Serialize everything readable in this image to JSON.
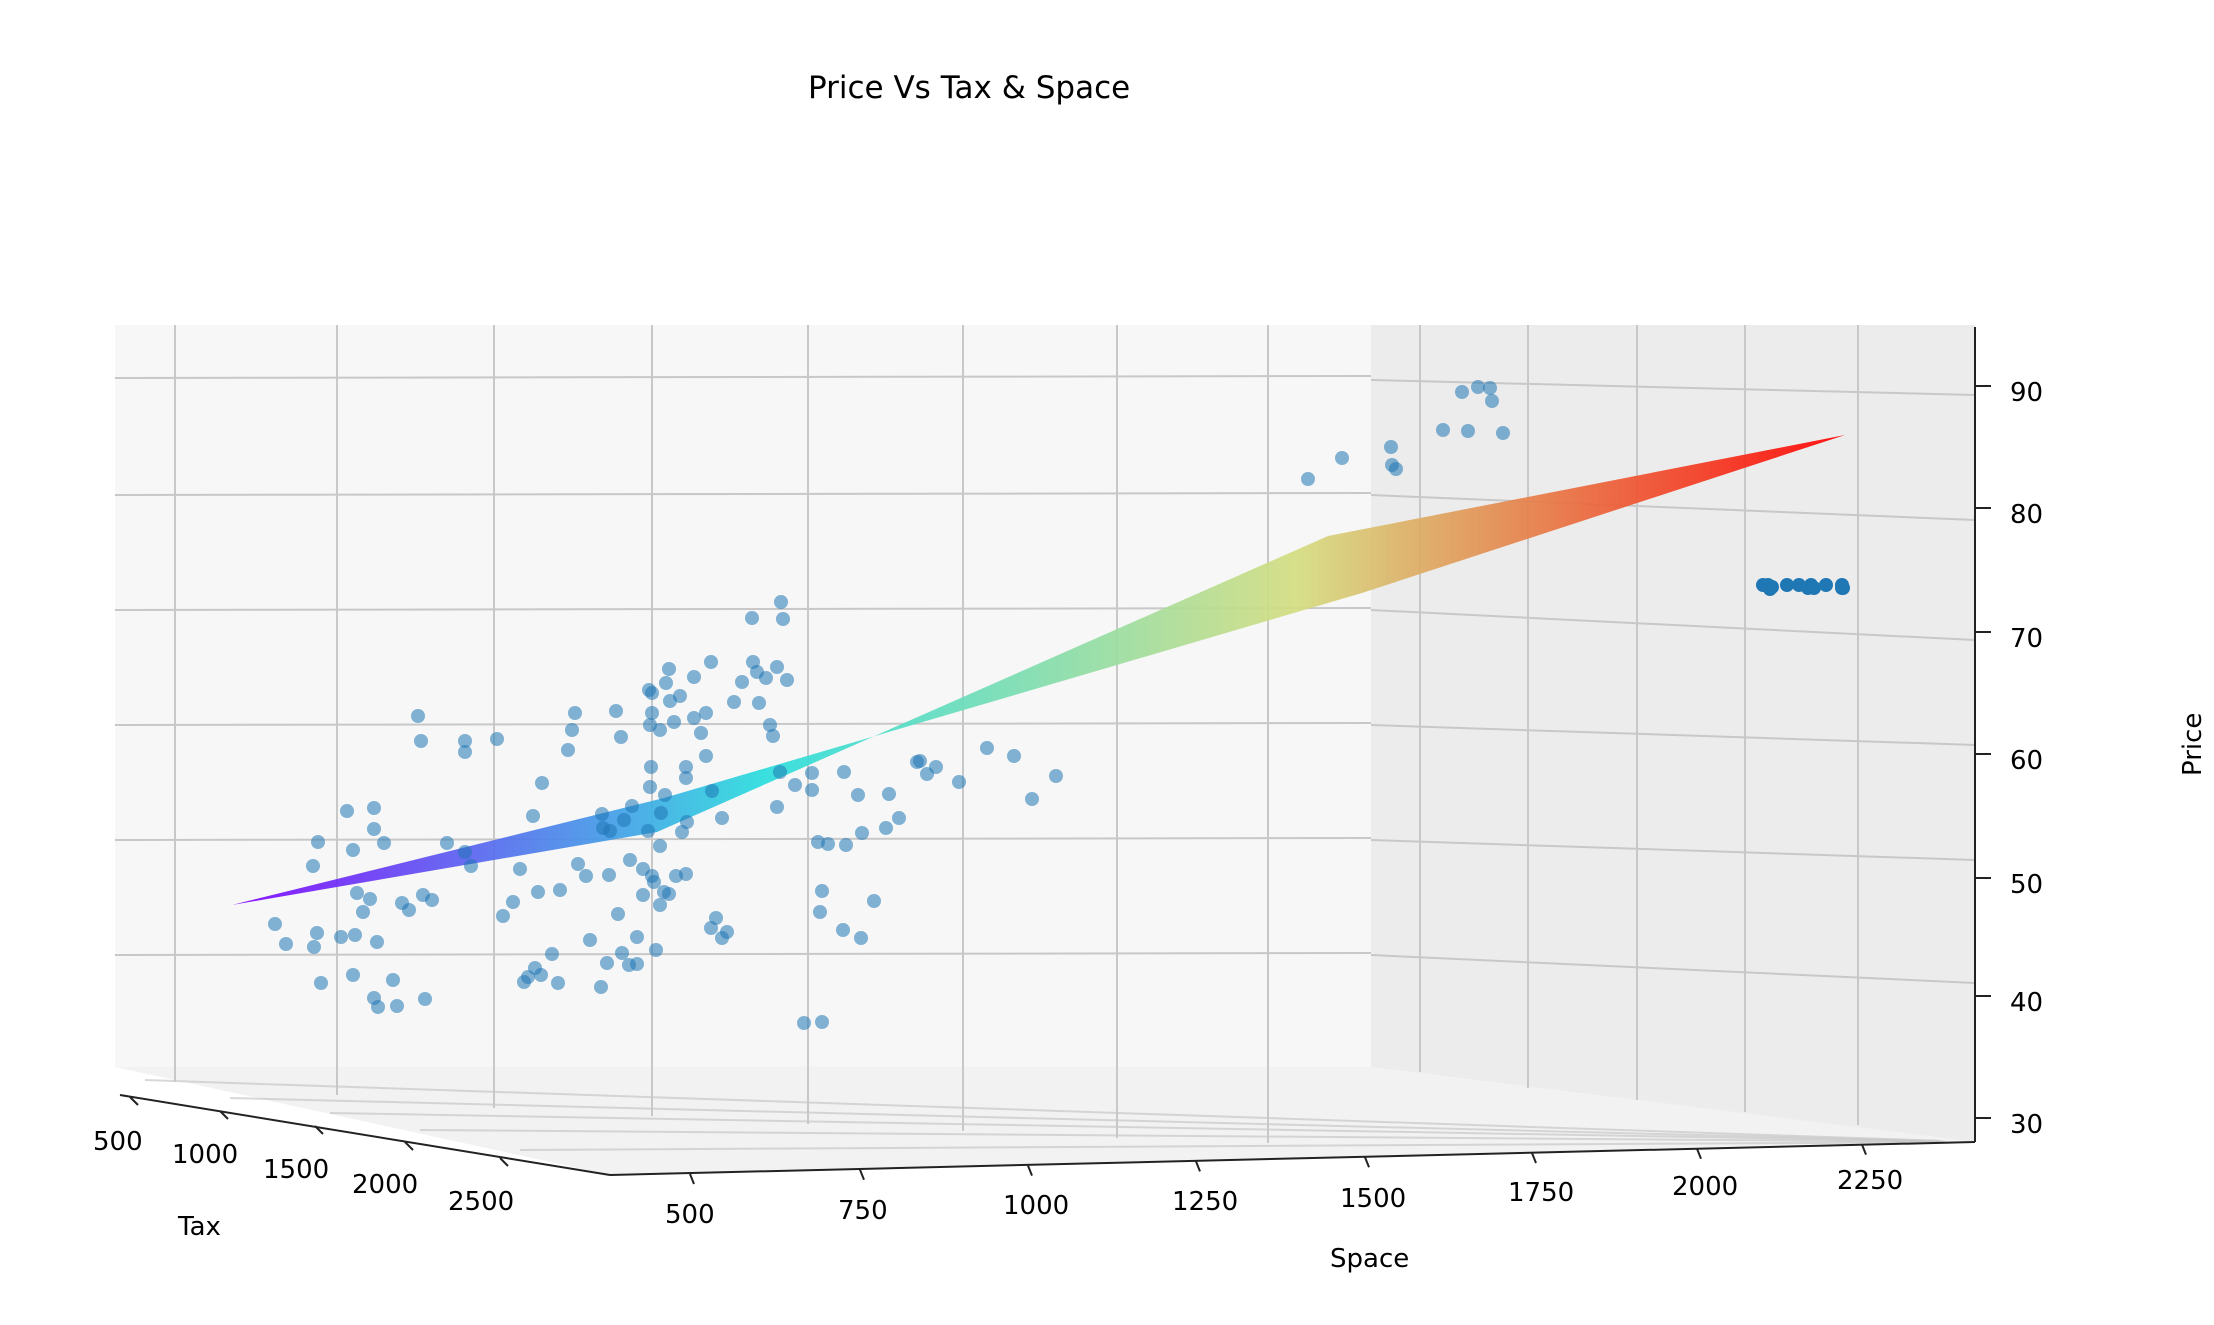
{
  "chart_data": {
    "type": "scatter3d",
    "title": "Price Vs Tax & Space",
    "xlabel": "Tax",
    "ylabel": "Space",
    "zlabel": "Price",
    "x_ticks": [
      "500",
      "1000",
      "1500",
      "2000",
      "2500"
    ],
    "y_ticks": [
      "500",
      "750",
      "1000",
      "1250",
      "1500",
      "1750",
      "2000",
      "2250"
    ],
    "z_ticks": [
      "30",
      "40",
      "50",
      "60",
      "70",
      "80",
      "90"
    ],
    "grid": true,
    "surface": {
      "description": "fitted regression plane",
      "colormap": "rainbow",
      "price_min": 47,
      "price_max": 86
    },
    "point_color": "#1f77b4",
    "plane_colors": [
      "#8000ff",
      "#2adddd",
      "#d4dd80",
      "#ff0000"
    ]
  }
}
